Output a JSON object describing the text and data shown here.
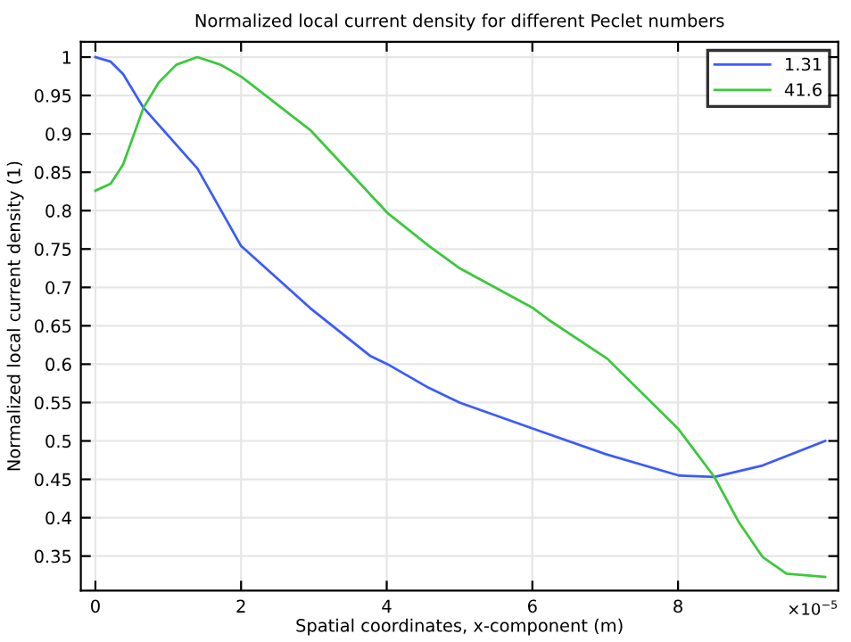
{
  "chart_data": {
    "type": "line",
    "title": "Normalized local current density for different Peclet numbers",
    "xlabel": "Spatial coordinates, x-component (m)",
    "ylabel": "Normalized local current density (1)",
    "annotations": [
      "×10$^{−5}$"
    ],
    "xlim": [
      -0.2,
      10.2
    ],
    "xticks": [
      0,
      2,
      4,
      6,
      8
    ],
    "ylim": [
      0.305,
      1.02
    ],
    "yticks": [
      0.35,
      0.4,
      0.45,
      0.5,
      0.55,
      0.6,
      0.65,
      0.7,
      0.75,
      0.8,
      0.85,
      0.9,
      0.95,
      1
    ],
    "grid": true,
    "legend": "top right",
    "marker": "none",
    "line_style": "solid",
    "series": [
      {
        "name": "1.31",
        "color": "#3b5bff",
        "x": [
          0,
          0.21,
          0.38,
          0.66,
          1.4,
          2.0,
          2.95,
          3.77,
          4.01,
          4.58,
          5.0,
          6.01,
          7.0,
          8.01,
          8.5,
          9.16,
          10.02
        ],
        "values": [
          1.0,
          0.994,
          0.978,
          0.934,
          0.855,
          0.754,
          0.673,
          0.611,
          0.6,
          0.569,
          0.55,
          0.516,
          0.483,
          0.455,
          0.453,
          0.468,
          0.5
        ]
      },
      {
        "name": "41.6",
        "color": "#3cc83c",
        "x": [
          0,
          0.21,
          0.38,
          0.66,
          0.87,
          1.11,
          1.4,
          1.72,
          2.01,
          2.95,
          4.01,
          4.58,
          5.0,
          6.01,
          6.22,
          7.03,
          8.01,
          8.5,
          8.83,
          9.16,
          9.49,
          10.02
        ],
        "values": [
          0.826,
          0.835,
          0.86,
          0.934,
          0.967,
          0.99,
          1.0,
          0.99,
          0.974,
          0.905,
          0.797,
          0.754,
          0.725,
          0.673,
          0.658,
          0.607,
          0.515,
          0.453,
          0.395,
          0.349,
          0.327,
          0.323
        ]
      }
    ]
  }
}
